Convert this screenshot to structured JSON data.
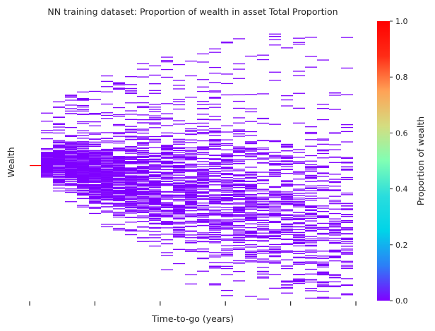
{
  "chart_data": {
    "type": "heatmap",
    "title": "NN training dataset: Proportion of wealth in asset Total Proportion",
    "xlabel": "Time-to-go (years)",
    "ylabel": "Wealth",
    "x_ticklabels": [],
    "y_ticklabels": [],
    "x_tick_count": 6,
    "colorbar": {
      "label": "Proportion of wealth",
      "range": [
        0.0,
        1.0
      ],
      "ticks": [
        0.0,
        0.2,
        0.4,
        0.6,
        0.8,
        1.0
      ],
      "tick_labels": [
        "0.0",
        "0.2",
        "0.4",
        "0.6",
        "0.8",
        "1.0"
      ],
      "colormap": "rainbow",
      "colormap_stops": [
        "#8000ff",
        "#2c7ef7",
        "#00d4e8",
        "#2adddd",
        "#80ffb4",
        "#d4dd80",
        "#ffa256",
        "#ff2c16",
        "#ff0000"
      ]
    },
    "dominant_value": 0.0,
    "initial_value": 1.0,
    "value_color": "#7f00ff",
    "initial_color": "#ff0000",
    "grid": false
  }
}
